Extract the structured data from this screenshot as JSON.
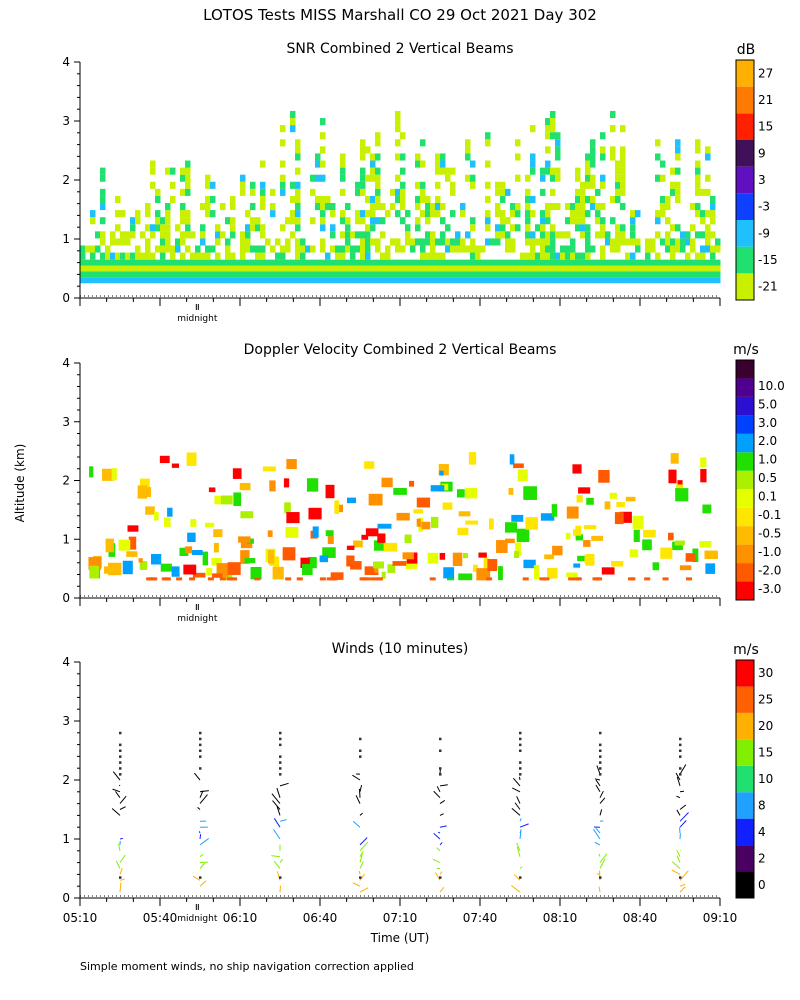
{
  "title": "LOTOS Tests MISS Marshall CO  29 Oct 2021 Day 302",
  "footnote": "Simple moment winds, no ship navigation correction applied",
  "colors": {
    "snr": [
      "#c8f000",
      "#20e070",
      "#20c0ff",
      "#1040ff",
      "#6010c0",
      "#40105a",
      "#ff2000",
      "#ff7a00",
      "#ffb000"
    ],
    "vel": [
      "#ff0000",
      "#ff5a00",
      "#ff9000",
      "#ffbb00",
      "#ffe600",
      "#e6ff00",
      "#aaf000",
      "#20e000",
      "#00a0ff",
      "#0040ff",
      "#2a10d0",
      "#500090",
      "#3a0030"
    ],
    "wind": [
      "#000000",
      "#4a0060",
      "#1020ff",
      "#20a0ff",
      "#20e070",
      "#80f000",
      "#ffb000",
      "#ff6000",
      "#ff0000"
    ]
  },
  "chart_data": [
    {
      "type": "heatmap",
      "title": "SNR Combined 2 Vertical Beams",
      "ylabel": "Altitude (km)",
      "yticks": [
        "0",
        "1",
        "2",
        "3",
        "4"
      ],
      "ylim": [
        0,
        4
      ],
      "xlim": [
        "05:10",
        "09:10"
      ],
      "xlabels": [],
      "midnight_label": "midnight",
      "colorbar_unit": "dB",
      "colorbar_labels": [
        "-21",
        "-15",
        "-9",
        "-3",
        "3",
        "9",
        "15",
        "21",
        "27"
      ]
    },
    {
      "type": "heatmap",
      "title": "Doppler Velocity Combined 2 Vertical Beams",
      "ylabel": "Altitude (km)",
      "yticks": [
        "0",
        "1",
        "2",
        "3",
        "4"
      ],
      "ylim": [
        0,
        4
      ],
      "xlim": [
        "05:10",
        "09:10"
      ],
      "xlabels": [],
      "midnight_label": "midnight",
      "colorbar_unit": "m/s",
      "colorbar_labels": [
        "-3.0",
        "-2.0",
        "-1.0",
        "-0.5",
        "-0.1",
        "0.1",
        "0.5",
        "1.0",
        "2.0",
        "3.0",
        "5.0",
        "10.0"
      ]
    },
    {
      "type": "scatter",
      "title": "Winds (10 minutes)",
      "ylabel": "Altitude (km)",
      "xlabel": "Time (UT)",
      "yticks": [
        "0",
        "1",
        "2",
        "3",
        "4"
      ],
      "ylim": [
        0,
        4
      ],
      "xlim": [
        "05:10",
        "09:10"
      ],
      "xlabels": [
        "05:10",
        "05:40",
        "06:10",
        "06:40",
        "07:10",
        "07:40",
        "08:10",
        "08:40",
        "09:10"
      ],
      "midnight_label": "midnight",
      "colorbar_unit": "m/s",
      "colorbar_labels": [
        "0",
        "2",
        "4",
        "8",
        "10",
        "15",
        "20",
        "25",
        "30"
      ],
      "profile_times": [
        "05:25",
        "05:55",
        "06:25",
        "06:55",
        "07:25",
        "07:55",
        "08:25",
        "08:55"
      ]
    }
  ]
}
